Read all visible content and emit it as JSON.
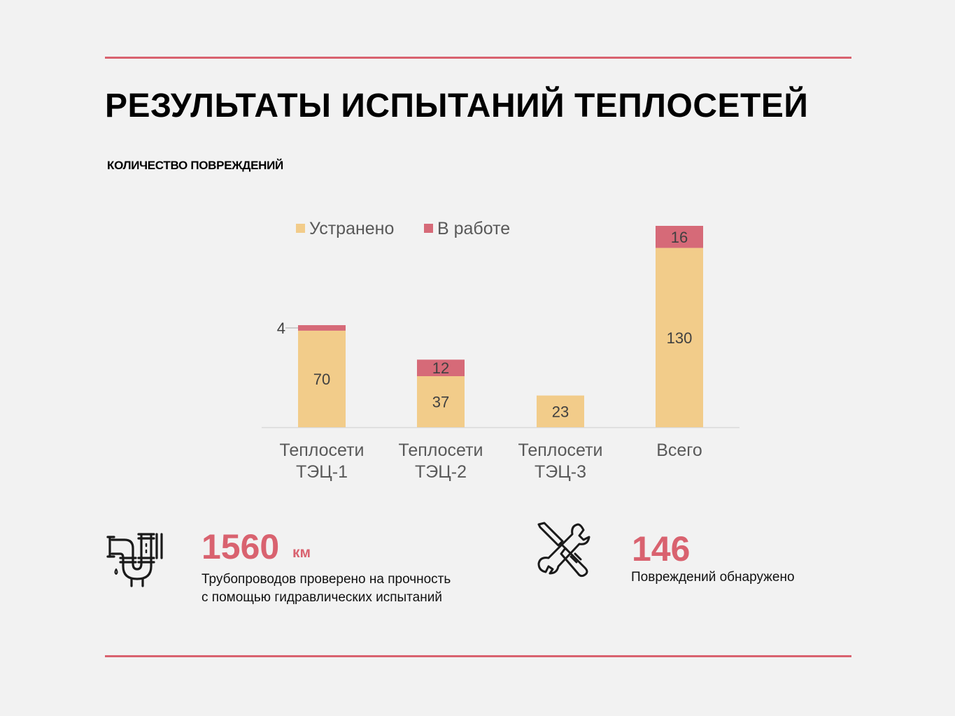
{
  "page": {
    "title": "РЕЗУЛЬТАТЫ ИСПЫТАНИЙ ТЕПЛОСЕТЕЙ",
    "subtitle": "КОЛИЧЕСТВО ПОВРЕЖДЕНИЙ"
  },
  "colors": {
    "accent": "#d9626f",
    "fixed": "#f2cc8a",
    "in_work": "#d66a78",
    "axis": "#d9d9d9",
    "label": "#595959",
    "value_label": "#404040"
  },
  "chart_data": {
    "type": "bar",
    "stacked": true,
    "title": "",
    "xlabel": "",
    "ylabel": "",
    "legend_position": "top",
    "categories": [
      [
        "Теплосети",
        "ТЭЦ-1"
      ],
      [
        "Теплосети",
        "ТЭЦ-2"
      ],
      [
        "Теплосети",
        "ТЭЦ-3"
      ],
      [
        "Всего"
      ]
    ],
    "series": [
      {
        "name": "Устранено",
        "values": [
          70,
          37,
          23,
          130
        ]
      },
      {
        "name": "В работе",
        "values": [
          4,
          12,
          0,
          16
        ]
      }
    ],
    "ylim": [
      0,
      146
    ],
    "grid": false
  },
  "stats": [
    {
      "icon": "pipe-icon",
      "value": "1560",
      "unit": "км",
      "description": [
        "Трубопроводов проверено на прочность",
        "с помощью гидравлических испытаний"
      ]
    },
    {
      "icon": "tools-icon",
      "value": "146",
      "unit": "",
      "description": [
        "Повреждений обнаружено"
      ]
    }
  ]
}
